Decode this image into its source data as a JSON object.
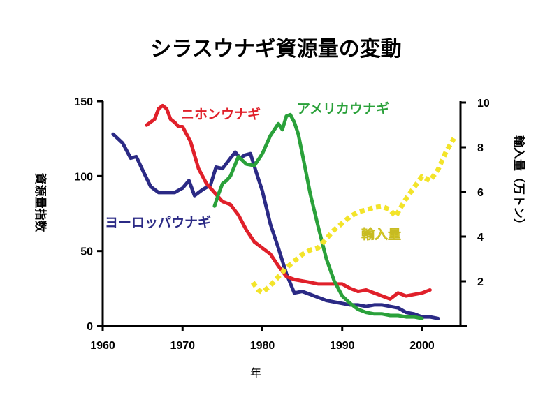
{
  "chart_data": {
    "type": "line",
    "title": "シラスウナギ資源量の変動",
    "xlabel": "年",
    "ylabel_left": "資源量指数",
    "ylabel_right": "輸入量（万トン）",
    "xlim": [
      1960,
      2004
    ],
    "ylim_left": [
      0,
      150
    ],
    "ylim_right": [
      0,
      10
    ],
    "x_ticks": [
      "1960",
      "1970",
      "1980",
      "1990",
      "2000"
    ],
    "y_left_ticks": [
      "0",
      "50",
      "100",
      "150"
    ],
    "y_right_ticks": [
      "2",
      "4",
      "6",
      "8",
      "10"
    ],
    "grid": false,
    "series": [
      {
        "name": "ヨーロッパウナギ",
        "axis": "left",
        "color": "#2b2a85",
        "style": "solid",
        "x": [
          1961.3,
          1962.5,
          1963.5,
          1964.2,
          1965,
          1966,
          1967,
          1968,
          1969,
          1970,
          1970.8,
          1971.5,
          1972.5,
          1973.5,
          1974.2,
          1975,
          1976,
          1976.6,
          1977.2,
          1977.8,
          1978.5,
          1979.2,
          1980,
          1981,
          1982,
          1983,
          1984,
          1985,
          1986,
          1987,
          1988,
          1989,
          1990,
          1991,
          1992,
          1993,
          1994,
          1995,
          1996,
          1997,
          1998,
          1999,
          2000,
          2001,
          2002
        ],
        "y": [
          128,
          122,
          112,
          113,
          104,
          93,
          89,
          89,
          89,
          92,
          97,
          87,
          91,
          94,
          106,
          105,
          112,
          116,
          112,
          114,
          115,
          103,
          90,
          68,
          52,
          35,
          22,
          23,
          21,
          19,
          17,
          16,
          15,
          14,
          14,
          13,
          14,
          14,
          13,
          12,
          9,
          8,
          6,
          6,
          5
        ]
      },
      {
        "name": "ニホンウナギ",
        "axis": "left",
        "color": "#e0202a",
        "style": "solid",
        "x": [
          1965.5,
          1966.5,
          1967,
          1967.5,
          1968,
          1968.5,
          1969,
          1969.5,
          1970,
          1971,
          1972,
          1973,
          1974,
          1975,
          1976,
          1977,
          1978,
          1979,
          1980,
          1981,
          1982,
          1983,
          1984,
          1985,
          1986,
          1987,
          1988,
          1989,
          1990,
          1991,
          1992,
          1993,
          1994,
          1995,
          1996,
          1997,
          1998,
          1999,
          2000,
          2001
        ],
        "y": [
          134,
          138,
          145,
          147,
          145,
          138,
          136,
          133,
          133,
          123,
          105,
          95,
          89,
          83,
          81,
          74,
          64,
          56,
          52,
          48,
          40,
          33,
          31,
          30,
          29,
          28,
          28,
          28,
          28,
          25,
          23,
          24,
          22,
          20,
          18,
          22,
          20,
          21,
          22,
          24
        ]
      },
      {
        "name": "アメリカウナギ",
        "axis": "left",
        "color": "#2aa13a",
        "style": "solid",
        "x": [
          1974,
          1974.5,
          1975,
          1975.5,
          1976,
          1977,
          1978,
          1979,
          1980,
          1981,
          1982,
          1982.5,
          1983,
          1983.5,
          1984,
          1984.5,
          1985,
          1986,
          1987,
          1988,
          1989,
          1990,
          1991,
          1992,
          1993,
          1994,
          1995,
          1996,
          1997,
          1998,
          1999,
          2000
        ],
        "y": [
          80,
          88,
          95,
          97,
          100,
          113,
          108,
          107,
          115,
          127,
          135,
          131,
          140,
          141,
          136,
          128,
          115,
          88,
          66,
          45,
          30,
          20,
          15,
          11,
          9,
          8,
          8,
          7,
          7,
          6,
          6,
          5
        ]
      },
      {
        "name": "輸入量",
        "axis": "right",
        "color": "#f3e42a",
        "style": "dotted",
        "x": [
          1978.8,
          1979.5,
          1980,
          1981,
          1982,
          1983,
          1984,
          1985,
          1986,
          1987,
          1988,
          1989,
          1990,
          1991,
          1992,
          1993,
          1994,
          1995,
          1996,
          1996.7,
          1997.5,
          1998,
          1999,
          2000,
          2001,
          2002,
          2003,
          2004
        ],
        "y": [
          1.95,
          1.6,
          1.5,
          1.8,
          2.2,
          2.6,
          2.9,
          3.2,
          3.4,
          3.5,
          3.9,
          4.3,
          4.6,
          4.9,
          5.1,
          5.2,
          5.3,
          5.35,
          5.2,
          4.9,
          5.4,
          5.7,
          6.2,
          6.7,
          6.5,
          7.0,
          7.8,
          8.4
        ]
      }
    ]
  }
}
